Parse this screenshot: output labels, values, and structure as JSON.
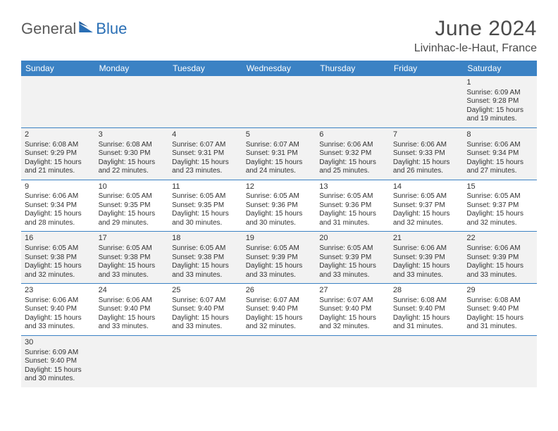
{
  "brand": {
    "part1": "General",
    "part2": "Blue"
  },
  "title": "June 2024",
  "location": "Livinhac-le-Haut, France",
  "colors": {
    "header_bg": "#3b82c4",
    "header_text": "#ffffff",
    "row_border": "#3b82c4",
    "shade_bg": "#f2f2f2",
    "text": "#333333",
    "brand_gray": "#5a5a5a",
    "brand_blue": "#2a6fb5"
  },
  "weekdays": [
    "Sunday",
    "Monday",
    "Tuesday",
    "Wednesday",
    "Thursday",
    "Friday",
    "Saturday"
  ],
  "weeks": [
    [
      null,
      null,
      null,
      null,
      null,
      null,
      {
        "n": "1",
        "sr": "Sunrise: 6:09 AM",
        "ss": "Sunset: 9:28 PM",
        "d1": "Daylight: 15 hours",
        "d2": "and 19 minutes."
      }
    ],
    [
      {
        "n": "2",
        "sr": "Sunrise: 6:08 AM",
        "ss": "Sunset: 9:29 PM",
        "d1": "Daylight: 15 hours",
        "d2": "and 21 minutes."
      },
      {
        "n": "3",
        "sr": "Sunrise: 6:08 AM",
        "ss": "Sunset: 9:30 PM",
        "d1": "Daylight: 15 hours",
        "d2": "and 22 minutes."
      },
      {
        "n": "4",
        "sr": "Sunrise: 6:07 AM",
        "ss": "Sunset: 9:31 PM",
        "d1": "Daylight: 15 hours",
        "d2": "and 23 minutes."
      },
      {
        "n": "5",
        "sr": "Sunrise: 6:07 AM",
        "ss": "Sunset: 9:31 PM",
        "d1": "Daylight: 15 hours",
        "d2": "and 24 minutes."
      },
      {
        "n": "6",
        "sr": "Sunrise: 6:06 AM",
        "ss": "Sunset: 9:32 PM",
        "d1": "Daylight: 15 hours",
        "d2": "and 25 minutes."
      },
      {
        "n": "7",
        "sr": "Sunrise: 6:06 AM",
        "ss": "Sunset: 9:33 PM",
        "d1": "Daylight: 15 hours",
        "d2": "and 26 minutes."
      },
      {
        "n": "8",
        "sr": "Sunrise: 6:06 AM",
        "ss": "Sunset: 9:34 PM",
        "d1": "Daylight: 15 hours",
        "d2": "and 27 minutes."
      }
    ],
    [
      {
        "n": "9",
        "sr": "Sunrise: 6:06 AM",
        "ss": "Sunset: 9:34 PM",
        "d1": "Daylight: 15 hours",
        "d2": "and 28 minutes."
      },
      {
        "n": "10",
        "sr": "Sunrise: 6:05 AM",
        "ss": "Sunset: 9:35 PM",
        "d1": "Daylight: 15 hours",
        "d2": "and 29 minutes."
      },
      {
        "n": "11",
        "sr": "Sunrise: 6:05 AM",
        "ss": "Sunset: 9:35 PM",
        "d1": "Daylight: 15 hours",
        "d2": "and 30 minutes."
      },
      {
        "n": "12",
        "sr": "Sunrise: 6:05 AM",
        "ss": "Sunset: 9:36 PM",
        "d1": "Daylight: 15 hours",
        "d2": "and 30 minutes."
      },
      {
        "n": "13",
        "sr": "Sunrise: 6:05 AM",
        "ss": "Sunset: 9:36 PM",
        "d1": "Daylight: 15 hours",
        "d2": "and 31 minutes."
      },
      {
        "n": "14",
        "sr": "Sunrise: 6:05 AM",
        "ss": "Sunset: 9:37 PM",
        "d1": "Daylight: 15 hours",
        "d2": "and 32 minutes."
      },
      {
        "n": "15",
        "sr": "Sunrise: 6:05 AM",
        "ss": "Sunset: 9:37 PM",
        "d1": "Daylight: 15 hours",
        "d2": "and 32 minutes."
      }
    ],
    [
      {
        "n": "16",
        "sr": "Sunrise: 6:05 AM",
        "ss": "Sunset: 9:38 PM",
        "d1": "Daylight: 15 hours",
        "d2": "and 32 minutes."
      },
      {
        "n": "17",
        "sr": "Sunrise: 6:05 AM",
        "ss": "Sunset: 9:38 PM",
        "d1": "Daylight: 15 hours",
        "d2": "and 33 minutes."
      },
      {
        "n": "18",
        "sr": "Sunrise: 6:05 AM",
        "ss": "Sunset: 9:38 PM",
        "d1": "Daylight: 15 hours",
        "d2": "and 33 minutes."
      },
      {
        "n": "19",
        "sr": "Sunrise: 6:05 AM",
        "ss": "Sunset: 9:39 PM",
        "d1": "Daylight: 15 hours",
        "d2": "and 33 minutes."
      },
      {
        "n": "20",
        "sr": "Sunrise: 6:05 AM",
        "ss": "Sunset: 9:39 PM",
        "d1": "Daylight: 15 hours",
        "d2": "and 33 minutes."
      },
      {
        "n": "21",
        "sr": "Sunrise: 6:06 AM",
        "ss": "Sunset: 9:39 PM",
        "d1": "Daylight: 15 hours",
        "d2": "and 33 minutes."
      },
      {
        "n": "22",
        "sr": "Sunrise: 6:06 AM",
        "ss": "Sunset: 9:39 PM",
        "d1": "Daylight: 15 hours",
        "d2": "and 33 minutes."
      }
    ],
    [
      {
        "n": "23",
        "sr": "Sunrise: 6:06 AM",
        "ss": "Sunset: 9:40 PM",
        "d1": "Daylight: 15 hours",
        "d2": "and 33 minutes."
      },
      {
        "n": "24",
        "sr": "Sunrise: 6:06 AM",
        "ss": "Sunset: 9:40 PM",
        "d1": "Daylight: 15 hours",
        "d2": "and 33 minutes."
      },
      {
        "n": "25",
        "sr": "Sunrise: 6:07 AM",
        "ss": "Sunset: 9:40 PM",
        "d1": "Daylight: 15 hours",
        "d2": "and 33 minutes."
      },
      {
        "n": "26",
        "sr": "Sunrise: 6:07 AM",
        "ss": "Sunset: 9:40 PM",
        "d1": "Daylight: 15 hours",
        "d2": "and 32 minutes."
      },
      {
        "n": "27",
        "sr": "Sunrise: 6:07 AM",
        "ss": "Sunset: 9:40 PM",
        "d1": "Daylight: 15 hours",
        "d2": "and 32 minutes."
      },
      {
        "n": "28",
        "sr": "Sunrise: 6:08 AM",
        "ss": "Sunset: 9:40 PM",
        "d1": "Daylight: 15 hours",
        "d2": "and 31 minutes."
      },
      {
        "n": "29",
        "sr": "Sunrise: 6:08 AM",
        "ss": "Sunset: 9:40 PM",
        "d1": "Daylight: 15 hours",
        "d2": "and 31 minutes."
      }
    ],
    [
      {
        "n": "30",
        "sr": "Sunrise: 6:09 AM",
        "ss": "Sunset: 9:40 PM",
        "d1": "Daylight: 15 hours",
        "d2": "and 30 minutes."
      },
      null,
      null,
      null,
      null,
      null,
      null
    ]
  ]
}
